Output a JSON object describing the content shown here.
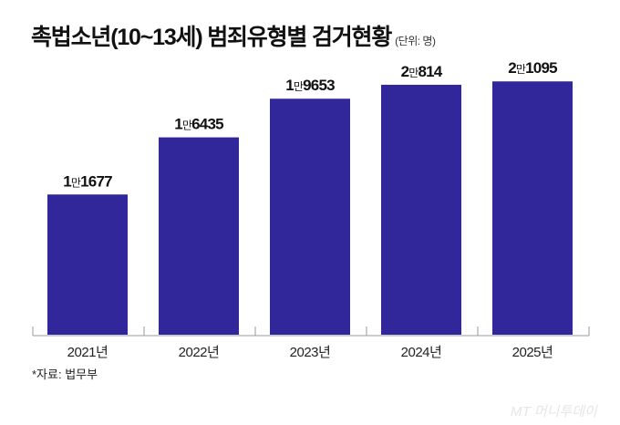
{
  "title": "촉법소년(10~13세) 범죄유형별 검거현황",
  "unit_label": "(단위: 명)",
  "source": "*자료: 법무부",
  "watermark": "MT 머니투데이",
  "colors": {
    "bar": "#31269a",
    "axis": "#999999"
  },
  "chart_data": {
    "type": "bar",
    "title": "촉법소년(10~13세) 범죄유형별 검거현황",
    "categories": [
      "2021년",
      "2022년",
      "2023년",
      "2024년",
      "2025년"
    ],
    "values": [
      11677,
      16435,
      19653,
      20814,
      21095
    ],
    "data_labels": [
      {
        "lead": "1",
        "mid": "만",
        "tail": "1677"
      },
      {
        "lead": "1",
        "mid": "만",
        "tail": "6435"
      },
      {
        "lead": "1",
        "mid": "만",
        "tail": "9653"
      },
      {
        "lead": "2",
        "mid": "만",
        "tail": "814"
      },
      {
        "lead": "2",
        "mid": "만",
        "tail": "1095"
      }
    ],
    "xlabel": "",
    "ylabel": "",
    "ylim": [
      0,
      24000
    ],
    "grid": false,
    "legend": "none"
  }
}
